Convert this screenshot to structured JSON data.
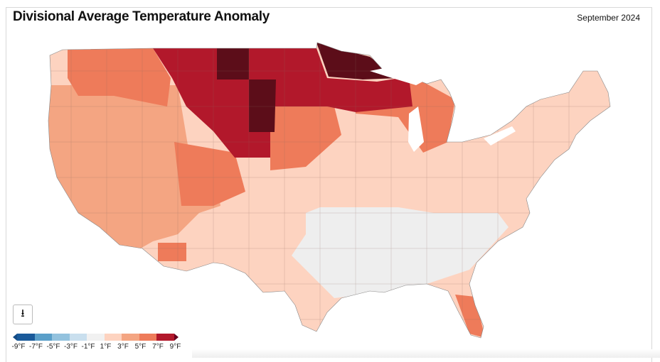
{
  "header": {
    "title": "Divisional Average Temperature Anomaly",
    "period": "September 2024"
  },
  "download_button": {
    "icon": "download-icon",
    "glyph": "⭳"
  },
  "legend": {
    "labels": [
      "-9°F",
      "-7°F",
      "-5°F",
      "-3°F",
      "-1°F",
      "1°F",
      "3°F",
      "5°F",
      "7°F",
      "9°F"
    ],
    "colors": [
      "#1a5a9a",
      "#5a9fc9",
      "#93c2de",
      "#c9dfee",
      "#f1f1f1",
      "#fdd3c0",
      "#f4a582",
      "#ee7b5a",
      "#b2182b"
    ],
    "below_color": "#134b86",
    "above_color": "#67001f"
  },
  "map": {
    "region": "Contiguous United States climate divisions",
    "colors": {
      "near_normal": "#eeeeee",
      "plus1_3": "#fdd3c0",
      "plus3_5": "#f4a582",
      "plus5_7": "#ee7b5a",
      "plus7_9": "#b2182b",
      "above9": "#5c0d19"
    }
  }
}
